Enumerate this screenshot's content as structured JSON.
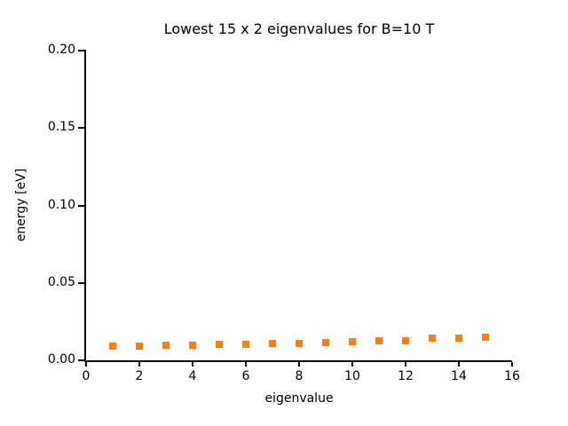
{
  "figure": {
    "title": "Lowest 15 x 2 eigenvalues for B=10 T",
    "xlabel": "eigenvalue",
    "ylabel": "energy [eV]",
    "background_color": "#ffffff",
    "text_color": "#000000",
    "marker_color": "#ff7f0e"
  },
  "chart_data": {
    "type": "scatter",
    "title": "Lowest 15 x 2 eigenvalues for B=10 T",
    "xlabel": "eigenvalue",
    "ylabel": "energy [eV]",
    "xlim": [
      0,
      16
    ],
    "ylim": [
      0.0,
      0.2
    ],
    "x_ticks": [
      0,
      2,
      4,
      6,
      8,
      10,
      12,
      14,
      16
    ],
    "y_ticks": [
      0.0,
      0.05,
      0.1,
      0.15,
      0.2
    ],
    "y_tick_labels": [
      "0.00",
      "0.05",
      "0.10",
      "0.15",
      "0.20"
    ],
    "grid": false,
    "legend": false,
    "marker": "square",
    "marker_color": "#ff7f0e",
    "series": [
      {
        "name": "eigenvalues",
        "x": [
          1,
          2,
          3,
          4,
          5,
          6,
          7,
          8,
          9,
          10,
          11,
          12,
          13,
          14,
          15
        ],
        "y": [
          0.0092,
          0.0093,
          0.0097,
          0.0098,
          0.0104,
          0.0106,
          0.0109,
          0.0111,
          0.0115,
          0.0118,
          0.0124,
          0.0126,
          0.0142,
          0.0144,
          0.0151
        ]
      }
    ]
  }
}
